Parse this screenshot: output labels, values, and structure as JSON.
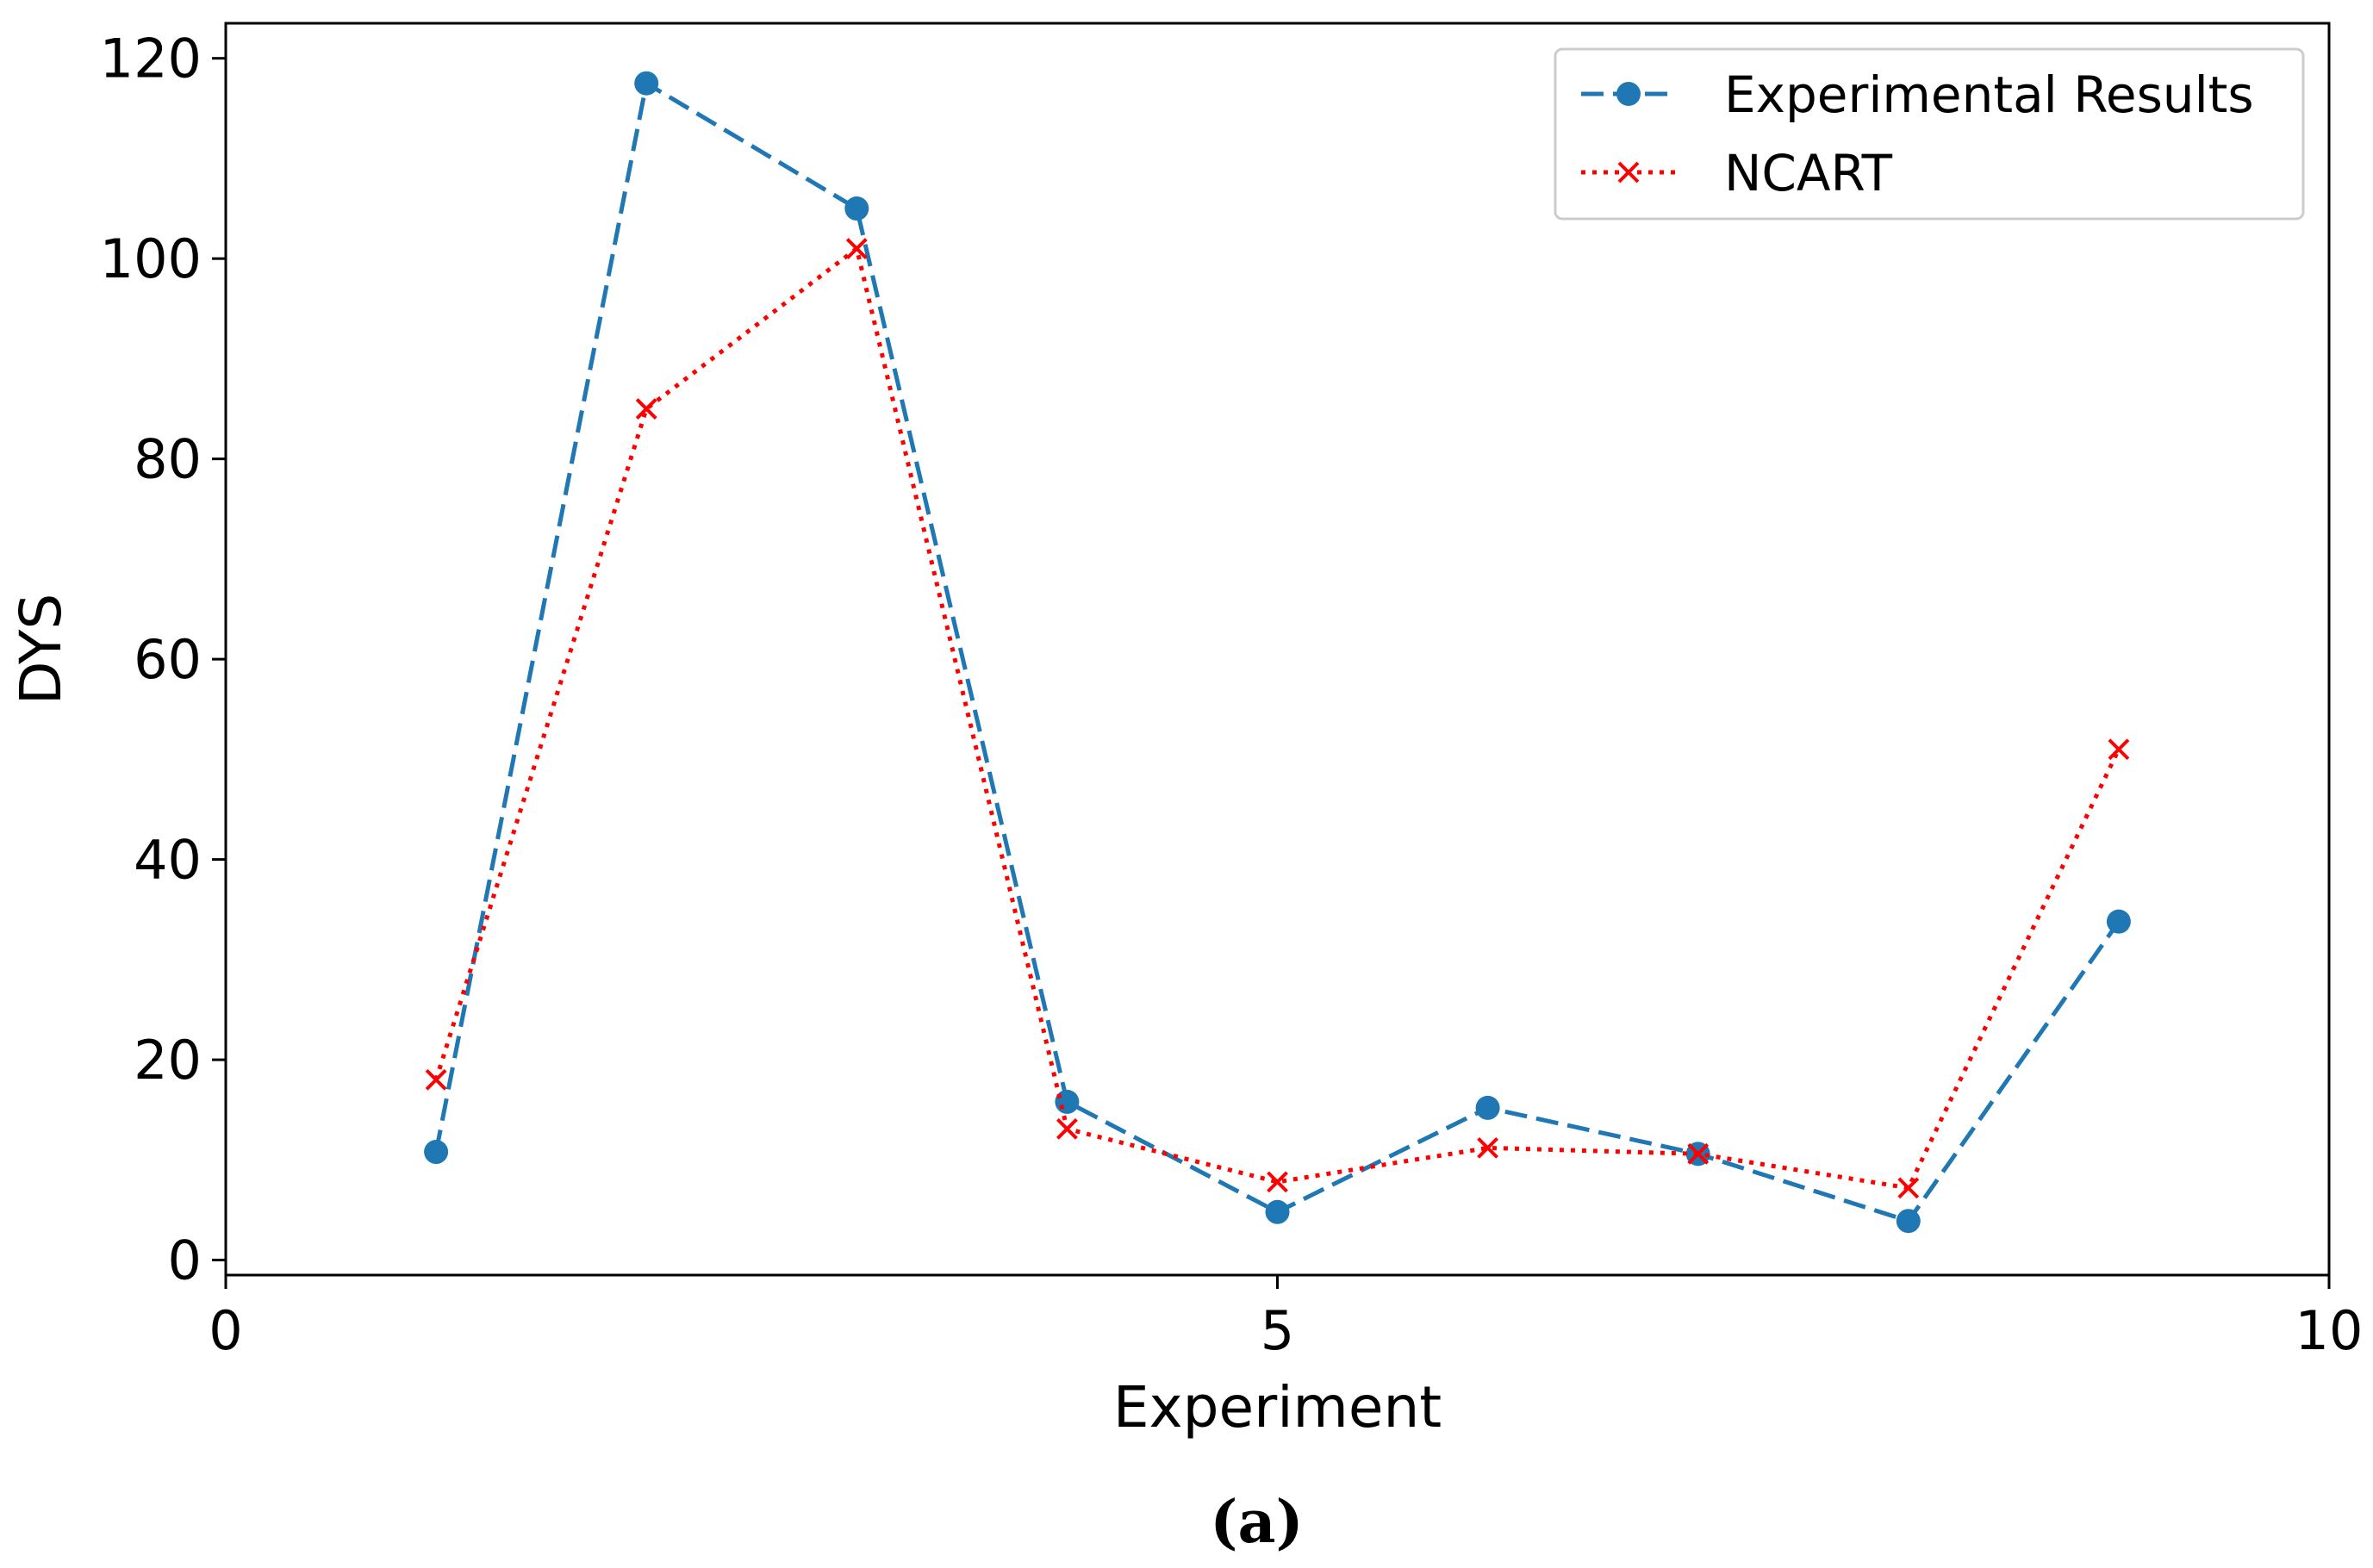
{
  "chart_data": {
    "type": "line",
    "title": "",
    "xlabel": "Experiment",
    "ylabel": "DYS",
    "xlim": [
      0,
      10
    ],
    "ylim": [
      -1.5,
      123.5
    ],
    "x_ticks": [
      0,
      5,
      10
    ],
    "y_ticks": [
      0,
      20,
      40,
      60,
      80,
      100,
      120
    ],
    "grid": false,
    "legend_position": "top-right",
    "x": [
      1,
      2,
      3,
      4,
      5,
      6,
      7,
      8,
      9
    ],
    "series": [
      {
        "name": "Experimental Results",
        "values": [
          10.8,
          117.5,
          105.0,
          15.8,
          4.8,
          15.2,
          10.6,
          3.9,
          33.8
        ],
        "color": "#1f77b4",
        "line_style": "dashed",
        "marker": "circle"
      },
      {
        "name": "NCART",
        "values": [
          18.0,
          85.0,
          101.0,
          13.1,
          7.8,
          11.2,
          10.6,
          7.2,
          51.0
        ],
        "color": "#ff0000",
        "line_style": "dotted",
        "marker": "x"
      }
    ]
  },
  "caption": "(a)"
}
